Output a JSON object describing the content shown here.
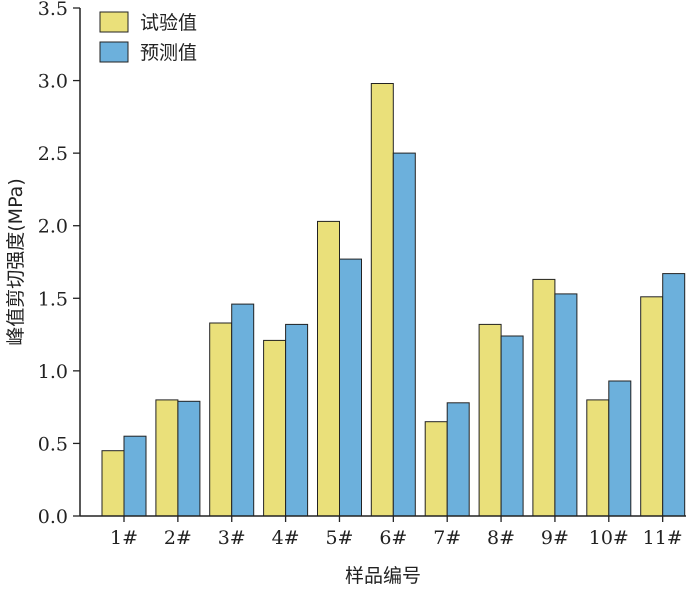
{
  "chart_data": {
    "type": "bar",
    "title": "",
    "xlabel": "样品编号",
    "ylabel": "峰值剪切强度(MPa)",
    "ylim": [
      0,
      3.5
    ],
    "yticks": [
      "0.0",
      "0.5",
      "1.0",
      "1.5",
      "2.0",
      "2.5",
      "3.0",
      "3.5"
    ],
    "categories": [
      "1#",
      "2#",
      "3#",
      "4#",
      "5#",
      "6#",
      "7#",
      "8#",
      "9#",
      "10#",
      "11#"
    ],
    "series": [
      {
        "name": "试验值",
        "color": "#eae07a",
        "values": [
          0.45,
          0.8,
          1.33,
          1.21,
          2.03,
          2.98,
          0.65,
          1.32,
          1.63,
          0.8,
          1.51
        ]
      },
      {
        "name": "预测值",
        "color": "#6cb0dc",
        "values": [
          0.55,
          0.79,
          1.46,
          1.32,
          1.77,
          2.5,
          0.78,
          1.24,
          1.53,
          0.93,
          1.67
        ]
      }
    ],
    "legend_position": "top-left",
    "grid": false
  }
}
